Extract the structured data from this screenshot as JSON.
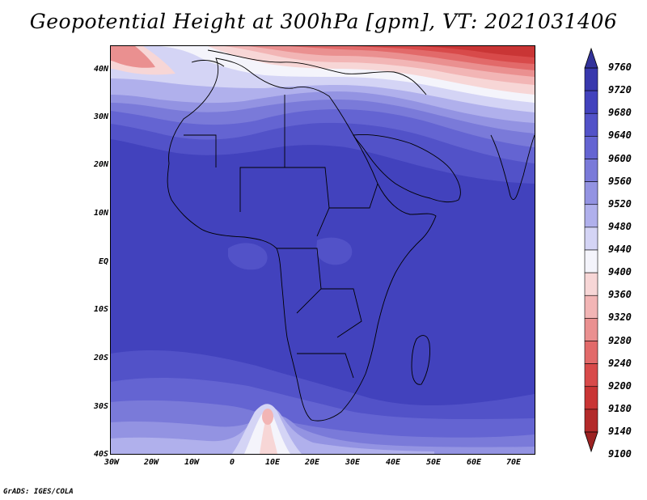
{
  "title": "Geopotential Height at 300hPa [gpm], VT: 2021031406",
  "credit": "GrADS: IGES/COLA",
  "lat_labels": [
    "40N",
    "30N",
    "20N",
    "10N",
    "EQ",
    "10S",
    "20S",
    "30S",
    "40S"
  ],
  "lon_labels": [
    "30W",
    "20W",
    "10W",
    "0",
    "10E",
    "20E",
    "30E",
    "40E",
    "50E",
    "60E",
    "70E"
  ],
  "colorbar": {
    "labels": [
      "9760",
      "9720",
      "9680",
      "9640",
      "9600",
      "9560",
      "9520",
      "9480",
      "9440",
      "9400",
      "9360",
      "9320",
      "9280",
      "9240",
      "9200",
      "9180",
      "9140",
      "9100"
    ],
    "colors": [
      "#32329a",
      "#3838ad",
      "#4242bd",
      "#5252c8",
      "#6464d2",
      "#7a7ad9",
      "#9393e2",
      "#b0b0ec",
      "#d4d4f5",
      "#f4f4fb",
      "#f7d6d6",
      "#f2b5b5",
      "#ea9090",
      "#e26a6a",
      "#d84a4a",
      "#c93535",
      "#b32a2a",
      "#9c2222"
    ]
  }
}
